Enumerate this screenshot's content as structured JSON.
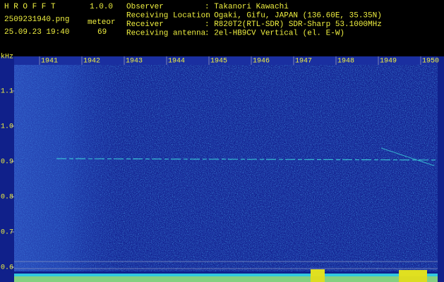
{
  "header": {
    "app": "H R O F F T",
    "version": "1.0.0",
    "file": "2509231940.png",
    "mode": "meteor",
    "datetime": "25.09.23 19:40",
    "count": "69",
    "fields": [
      {
        "label": "Observer",
        "value": ": Takanori Kawachi"
      },
      {
        "label": "Receiving Location",
        "value": ": Ogaki, Gifu, JAPAN (136.60E, 35.35N)"
      },
      {
        "label": "Receiver",
        "value": ": R820T2(RTL-SDR) SDR-Sharp 53.1000MHz"
      },
      {
        "label": "Receiving antenna",
        "value": ": 2el-HB9CV Vertical (el. E-W)"
      }
    ]
  },
  "plot": {
    "y_unit": "kHz",
    "x_labels": [
      "1941",
      "1942",
      "1943",
      "1944",
      "1945",
      "1946",
      "1947",
      "1948",
      "1949",
      "1950"
    ],
    "y_labels": [
      "1.1",
      "1.0",
      "0.9",
      "0.8",
      "0.7",
      "0.6"
    ]
  }
}
